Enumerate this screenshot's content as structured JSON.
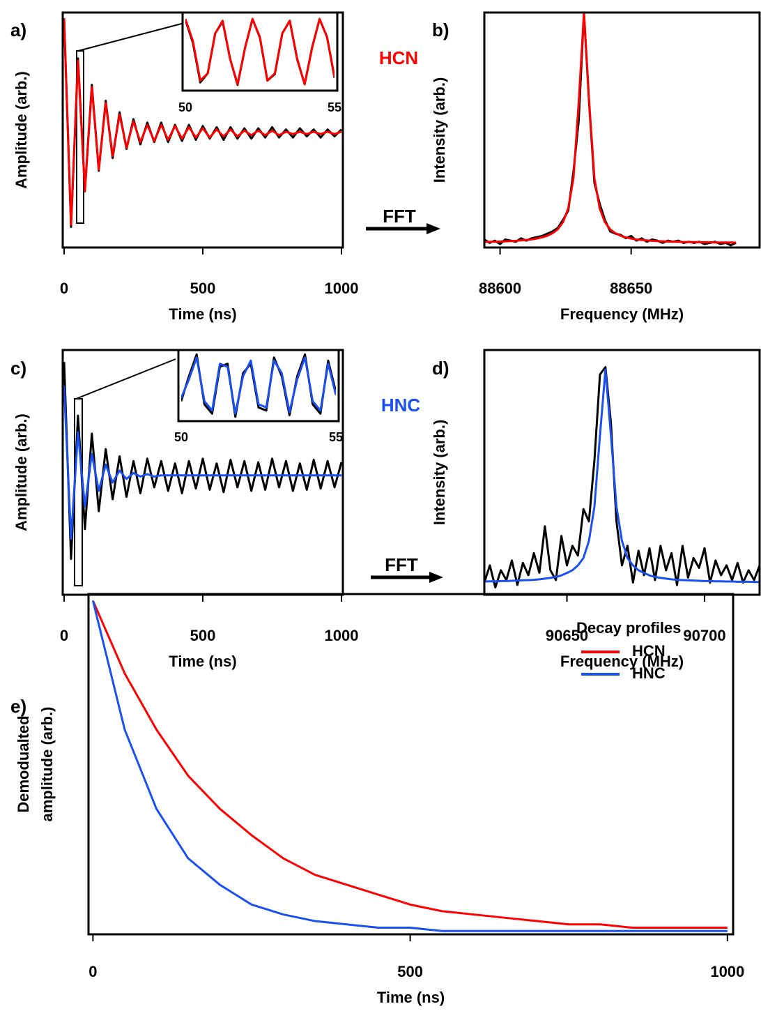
{
  "chart_data": [
    {
      "type": "line",
      "label": "a)",
      "xlabel": "Time (ns)",
      "ylabel": "Amplitude (arb.)",
      "xlim": [
        -5,
        1005
      ],
      "ylim": [
        -1.0,
        1.05
      ],
      "xticks": [
        0,
        500,
        1000
      ],
      "annotation": "HCN",
      "annotation_color": "#ff0000",
      "x": [
        0,
        25,
        50,
        75,
        100,
        125,
        150,
        175,
        200,
        225,
        250,
        275,
        300,
        325,
        350,
        375,
        400,
        425,
        450,
        475,
        500,
        525,
        550,
        575,
        600,
        625,
        650,
        675,
        700,
        725,
        750,
        775,
        800,
        825,
        850,
        875,
        900,
        925,
        950,
        975,
        1000
      ],
      "series": [
        {
          "color": "#000000",
          "values": [
            1.0,
            -0.82,
            0.65,
            -0.5,
            0.42,
            -0.33,
            0.28,
            -0.22,
            0.18,
            -0.14,
            0.12,
            -0.1,
            0.09,
            -0.08,
            0.09,
            -0.08,
            0.07,
            -0.07,
            0.07,
            -0.06,
            0.06,
            -0.05,
            0.05,
            -0.06,
            0.05,
            -0.05,
            0.04,
            -0.05,
            0.04,
            -0.04,
            0.05,
            -0.04,
            0.03,
            -0.04,
            0.04,
            -0.03,
            0.03,
            -0.04,
            0.03,
            -0.03,
            0.03
          ]
        },
        {
          "color": "#ff0000",
          "values": [
            1,
            -0.8,
            0.63,
            -0.51,
            0.4,
            -0.32,
            0.26,
            -0.2,
            0.16,
            -0.13,
            0.1,
            -0.08,
            0.07,
            -0.07,
            0.07,
            -0.06,
            0.06,
            -0.05,
            0.05,
            -0.04,
            0.04,
            -0.04,
            0.03,
            -0.03,
            0.03,
            -0.03,
            0.02,
            -0.02,
            0.02,
            -0.02,
            0.02,
            -0.02,
            0.01,
            -0.01,
            0.01,
            -0.01,
            0.01,
            -0.01,
            0.01,
            -0.01,
            0.01
          ]
        }
      ],
      "inset": {
        "xlim": [
          50,
          55
        ],
        "ylim": [
          -1,
          1
        ],
        "xticks": [
          50,
          55
        ],
        "x": [
          50,
          50.25,
          50.5,
          50.75,
          51,
          51.25,
          51.5,
          51.75,
          52,
          52.25,
          52.5,
          52.75,
          53,
          53.25,
          53.5,
          53.75,
          54,
          54.25,
          54.5,
          54.75,
          55
        ],
        "series": [
          {
            "color": "#000000",
            "values": [
              0.88,
              0.25,
              -0.85,
              -0.6,
              0.5,
              0.83,
              -0.2,
              -0.92,
              0.1,
              0.9,
              0.38,
              -0.8,
              -0.62,
              0.5,
              0.85,
              -0.22,
              -0.9,
              0.12,
              0.9,
              0.4,
              -0.72
            ]
          },
          {
            "color": "#ff0000",
            "values": [
              0.9,
              0.3,
              -0.8,
              -0.6,
              0.5,
              0.85,
              -0.2,
              -0.9,
              0.1,
              0.9,
              0.4,
              -0.8,
              -0.6,
              0.5,
              0.85,
              -0.2,
              -0.9,
              0.1,
              0.9,
              0.4,
              -0.7
            ]
          }
        ]
      }
    },
    {
      "type": "line",
      "label": "b)",
      "xlabel": "Frequency (MHz)",
      "ylabel": "Intensity (arb.)",
      "fft_label": "FFT",
      "xlim": [
        88594,
        88699
      ],
      "ylim": [
        0,
        1.02
      ],
      "xticks": [
        88600,
        88650
      ],
      "x": [
        88590,
        88592,
        88594,
        88596,
        88598,
        88600,
        88602,
        88604,
        88606,
        88608,
        88610,
        88612,
        88614,
        88616,
        88618,
        88620,
        88622,
        88624,
        88626,
        88628,
        88630,
        88632,
        88634,
        88636,
        88638,
        88640,
        88642,
        88644,
        88646,
        88648,
        88650,
        88652,
        88654,
        88656,
        88658,
        88660,
        88662,
        88664,
        88666,
        88668,
        88670,
        88672,
        88674,
        88676,
        88678,
        88680,
        88682,
        88684,
        88686,
        88688,
        88690
      ],
      "series": [
        {
          "color": "#000000",
          "values": [
            0.03,
            0.02,
            0.035,
            0.02,
            0.03,
            0.015,
            0.035,
            0.03,
            0.025,
            0.04,
            0.03,
            0.04,
            0.045,
            0.05,
            0.06,
            0.07,
            0.085,
            0.12,
            0.16,
            0.33,
            0.55,
            1.02,
            0.62,
            0.28,
            0.19,
            0.12,
            0.07,
            0.06,
            0.055,
            0.04,
            0.05,
            0.03,
            0.04,
            0.025,
            0.035,
            0.03,
            0.02,
            0.03,
            0.025,
            0.03,
            0.02,
            0.025,
            0.02,
            0.025,
            0.015,
            0.02,
            0.025,
            0.015,
            0.02,
            0.01,
            0.02
          ]
        },
        {
          "color": "#ff0000",
          "values": [
            0.024,
            0.024,
            0.024,
            0.025,
            0.025,
            0.026,
            0.027,
            0.028,
            0.029,
            0.031,
            0.033,
            0.035,
            0.039,
            0.044,
            0.051,
            0.062,
            0.079,
            0.11,
            0.17,
            0.3,
            0.63,
            1.02,
            0.63,
            0.3,
            0.17,
            0.11,
            0.079,
            0.062,
            0.051,
            0.044,
            0.039,
            0.035,
            0.033,
            0.031,
            0.029,
            0.028,
            0.027,
            0.026,
            0.025,
            0.025,
            0.024,
            0.024,
            0.024,
            0.023,
            0.023,
            0.023,
            0.022,
            0.022,
            0.022,
            0.022,
            0.021
          ]
        }
      ]
    },
    {
      "type": "line",
      "label": "c)",
      "xlabel": "Time (ns)",
      "ylabel": "Amplitude (arb.)",
      "xlim": [
        -5,
        1005
      ],
      "ylim": [
        -1.0,
        1.05
      ],
      "xticks": [
        0,
        500,
        1000
      ],
      "annotation": "HNC",
      "annotation_color": "#1a4ff0",
      "x": [
        0,
        25,
        50,
        75,
        100,
        125,
        150,
        175,
        200,
        225,
        250,
        275,
        300,
        325,
        350,
        375,
        400,
        425,
        450,
        475,
        500,
        525,
        550,
        575,
        600,
        625,
        650,
        675,
        700,
        725,
        750,
        775,
        800,
        825,
        850,
        875,
        900,
        925,
        950,
        975,
        1000
      ],
      "series": [
        {
          "color": "#000000",
          "values": [
            0.95,
            -0.7,
            0.5,
            -0.45,
            0.35,
            -0.3,
            0.22,
            -0.2,
            0.16,
            -0.18,
            0.12,
            -0.15,
            0.14,
            -0.1,
            0.12,
            -0.13,
            0.1,
            -0.15,
            0.12,
            -0.11,
            0.14,
            -0.12,
            0.1,
            -0.14,
            0.13,
            -0.1,
            0.12,
            -0.13,
            0.11,
            -0.12,
            0.14,
            -0.1,
            0.12,
            -0.13,
            0.1,
            -0.12,
            0.13,
            -0.11,
            0.12,
            -0.1,
            0.11
          ]
        },
        {
          "color": "#1a4ff0",
          "values": [
            0.75,
            -0.53,
            0.36,
            -0.26,
            0.18,
            -0.13,
            0.09,
            -0.06,
            0.04,
            -0.03,
            0.02,
            -0.01,
            0.01,
            -0.01,
            0,
            0,
            0,
            0,
            0,
            0,
            0,
            0,
            0,
            0,
            0,
            0,
            0,
            0,
            0,
            0,
            0,
            0,
            0,
            0,
            0,
            0,
            0,
            0,
            0,
            0,
            0
          ]
        }
      ],
      "inset": {
        "xlim": [
          50,
          55
        ],
        "ylim": [
          -1.05,
          1.05
        ],
        "xticks": [
          50,
          55
        ],
        "x": [
          50,
          50.25,
          50.5,
          50.75,
          51,
          51.25,
          51.5,
          51.75,
          52,
          52.25,
          52.5,
          52.75,
          53,
          53.25,
          53.5,
          53.75,
          54,
          54.25,
          54.5,
          54.75,
          55
        ],
        "series": [
          {
            "color": "#000000",
            "values": [
              -0.5,
              0.3,
              1.0,
              -0.6,
              -0.9,
              0.6,
              0.7,
              -1.0,
              0.4,
              0.7,
              -0.7,
              -0.8,
              0.9,
              0.3,
              -0.95,
              0.3,
              1.0,
              -0.6,
              -0.9,
              0.8,
              -0.2
            ]
          },
          {
            "color": "#1a4ff0",
            "values": [
              -0.4,
              0.2,
              0.9,
              -0.5,
              -0.8,
              0.7,
              0.6,
              -0.9,
              0.3,
              0.8,
              -0.6,
              -0.7,
              0.8,
              0.4,
              -0.85,
              0.2,
              0.9,
              -0.5,
              -0.8,
              0.7,
              -0.3
            ]
          }
        ]
      }
    },
    {
      "type": "line",
      "label": "d)",
      "xlabel": "Frequency (MHz)",
      "ylabel": "Intensity (arb.)",
      "fft_label": "FFT",
      "xlim": [
        90620,
        90720
      ],
      "ylim": [
        0,
        1.0
      ],
      "xticks": [
        90650,
        90700
      ],
      "x": [
        90620,
        90622,
        90624,
        90626,
        90628,
        90630,
        90632,
        90634,
        90636,
        90638,
        90640,
        90642,
        90644,
        90646,
        90648,
        90650,
        90652,
        90654,
        90656,
        90658,
        90660,
        90662,
        90664,
        90666,
        90668,
        90670,
        90672,
        90674,
        90676,
        90678,
        90680,
        90682,
        90684,
        90686,
        90688,
        90690,
        90692,
        90694,
        90696,
        90698,
        90700,
        90702,
        90704,
        90706,
        90708,
        90710,
        90712,
        90714,
        90716,
        90718,
        90720
      ],
      "series": [
        {
          "color": "#000000",
          "values": [
            0.05,
            0.12,
            0.03,
            0.1,
            0.06,
            0.14,
            0.04,
            0.13,
            0.08,
            0.17,
            0.09,
            0.28,
            0.1,
            0.06,
            0.24,
            0.12,
            0.2,
            0.16,
            0.35,
            0.3,
            0.55,
            0.9,
            0.93,
            0.7,
            0.3,
            0.12,
            0.2,
            0.05,
            0.18,
            0.08,
            0.19,
            0.06,
            0.2,
            0.1,
            0.17,
            0.04,
            0.2,
            0.07,
            0.15,
            0.11,
            0.19,
            0.05,
            0.14,
            0.08,
            0.12,
            0.06,
            0.13,
            0.05,
            0.1,
            0.06,
            0.12
          ]
        },
        {
          "color": "#1a4ff0",
          "values": [
            0.054,
            0.055,
            0.055,
            0.056,
            0.056,
            0.057,
            0.058,
            0.059,
            0.06,
            0.061,
            0.063,
            0.066,
            0.069,
            0.073,
            0.079,
            0.089,
            0.1,
            0.12,
            0.15,
            0.22,
            0.36,
            0.65,
            0.92,
            0.65,
            0.36,
            0.22,
            0.15,
            0.12,
            0.1,
            0.089,
            0.079,
            0.073,
            0.069,
            0.066,
            0.063,
            0.061,
            0.06,
            0.059,
            0.058,
            0.057,
            0.056,
            0.056,
            0.055,
            0.055,
            0.054,
            0.054,
            0.053,
            0.053,
            0.053,
            0.052,
            0.052
          ]
        }
      ]
    },
    {
      "type": "line",
      "label": "e)",
      "xlabel": "Time (ns)",
      "ylabel": [
        "Demodualted",
        "amplitude (arb.)"
      ],
      "xlim": [
        -7,
        1009
      ],
      "ylim": [
        -0.01,
        1.02
      ],
      "xticks": [
        0,
        500,
        1000
      ],
      "legend_title": "Decay profiles",
      "legend": "upper right",
      "x": [
        0,
        50,
        100,
        150,
        200,
        250,
        300,
        350,
        400,
        450,
        500,
        550,
        600,
        650,
        700,
        750,
        800,
        850,
        900,
        950,
        1000
      ],
      "series": [
        {
          "name": "HCN",
          "color": "#ff0000",
          "values": [
            1,
            0.78,
            0.61,
            0.47,
            0.37,
            0.29,
            0.22,
            0.17,
            0.14,
            0.11,
            0.08,
            0.06,
            0.05,
            0.04,
            0.03,
            0.02,
            0.02,
            0.01,
            0.01,
            0.01,
            0.01
          ]
        },
        {
          "name": "HNC",
          "color": "#1a4ff0",
          "values": [
            1,
            0.61,
            0.37,
            0.22,
            0.14,
            0.08,
            0.05,
            0.03,
            0.02,
            0.01,
            0.01,
            0,
            0,
            0,
            0,
            0,
            0,
            0,
            0,
            0,
            0
          ]
        }
      ]
    }
  ]
}
